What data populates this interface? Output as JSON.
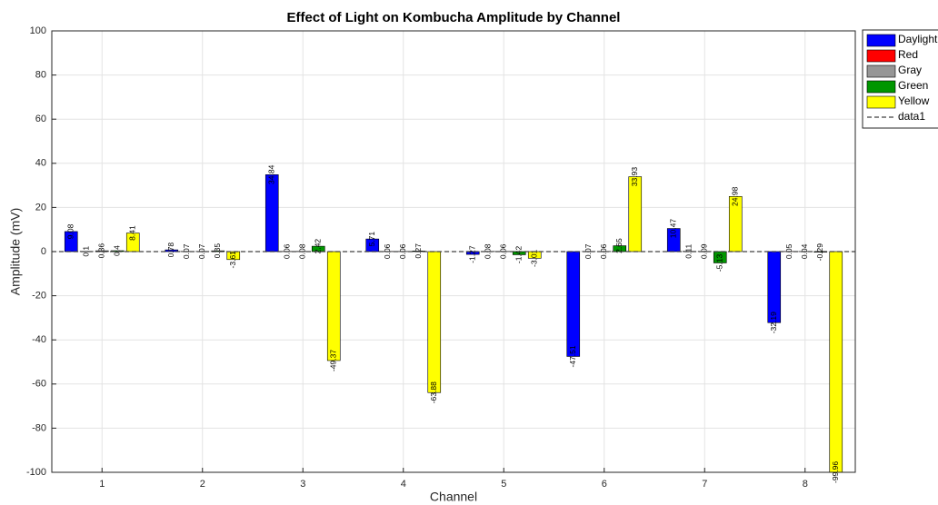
{
  "chart_data": {
    "type": "bar",
    "title": "Effect of Light on Kombucha Amplitude by Channel",
    "x_label": "Channel",
    "y_label": "Amplitude (mV)",
    "categories": [
      "1",
      "2",
      "3",
      "4",
      "5",
      "6",
      "7",
      "8"
    ],
    "series": [
      {
        "name": "Daylight",
        "color": "#0000ff",
        "values": [
          9.08,
          0.78,
          34.84,
          5.71,
          -1.27,
          -47.51,
          10.47,
          -32.19
        ]
      },
      {
        "name": "Red",
        "color": "#ff0000",
        "values": [
          0.1,
          0.07,
          0.06,
          0.06,
          0.08,
          0.07,
          0.11,
          0.05
        ]
      },
      {
        "name": "Gray",
        "color": "#969696",
        "values": [
          0.36,
          0.07,
          0.08,
          0.06,
          0.06,
          0.06,
          0.09,
          0.04
        ]
      },
      {
        "name": "Green",
        "color": "#009600",
        "values": [
          0.4,
          0.35,
          2.42,
          0.27,
          -1.42,
          2.65,
          -5.13,
          -0.29
        ]
      },
      {
        "name": "Yellow",
        "color": "#ffff00",
        "values": [
          8.41,
          -3.61,
          -49.37,
          -63.88,
          -3.01,
          33.93,
          24.98,
          -99.96
        ]
      }
    ],
    "reference_line": {
      "name": "data1",
      "value": 0,
      "color": "#404040"
    },
    "ylim": [
      -100,
      100
    ],
    "yticks": [
      -100,
      -80,
      -60,
      -40,
      -20,
      0,
      20,
      40,
      60,
      80,
      100
    ],
    "grid": true,
    "legend": "outside-top-right"
  }
}
